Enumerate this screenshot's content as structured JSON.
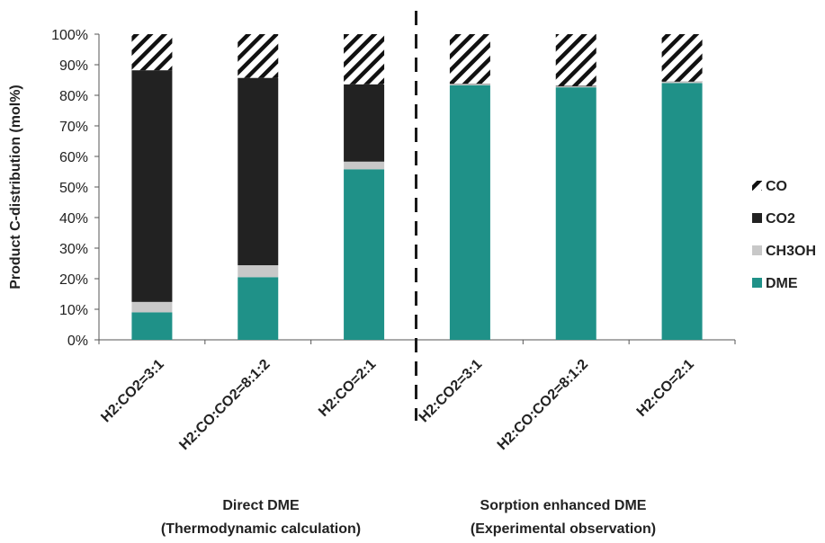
{
  "chart_data": {
    "type": "bar",
    "stacked": true,
    "ylabel": "Product C-distribution (mol%)",
    "ylim": [
      0,
      100
    ],
    "yticks": [
      "0%",
      "10%",
      "20%",
      "30%",
      "40%",
      "50%",
      "60%",
      "70%",
      "80%",
      "90%",
      "100%"
    ],
    "categories": [
      "H2:CO2=3:1",
      "H2:CO:CO2=8:1:2",
      "H2:CO=2:1",
      "H2:CO2=3:1",
      "H2:CO:CO2=8:1:2",
      "H2:CO=2:1"
    ],
    "series": [
      {
        "name": "DME",
        "color": "#1f9188",
        "values": [
          9,
          20.5,
          55.8,
          83.3,
          82.6,
          84.0
        ]
      },
      {
        "name": "CH3OH",
        "color": "#c8c8c8",
        "values": [
          3.4,
          3.9,
          2.5,
          0.4,
          0.3,
          0.4
        ]
      },
      {
        "name": "CO2",
        "color": "#222222",
        "values": [
          75.8,
          61.3,
          25.3,
          0.1,
          0.2,
          0.1
        ]
      },
      {
        "name": "CO",
        "color": "#ffffff",
        "pattern": "diagonal-hatch",
        "values": [
          11.8,
          14.3,
          16.4,
          16.2,
          16.9,
          15.5
        ]
      }
    ],
    "legend": {
      "placement": "right",
      "order": [
        "CO",
        "CO2",
        "CH3OH",
        "DME"
      ]
    },
    "grid": false,
    "divider": "dashed vertical line between third and fourth category",
    "groups": [
      {
        "line1": "Direct DME",
        "line2": "(Thermodynamic calculation)"
      },
      {
        "line1": "Sorption enhanced DME",
        "line2": "(Experimental observation)"
      }
    ]
  }
}
